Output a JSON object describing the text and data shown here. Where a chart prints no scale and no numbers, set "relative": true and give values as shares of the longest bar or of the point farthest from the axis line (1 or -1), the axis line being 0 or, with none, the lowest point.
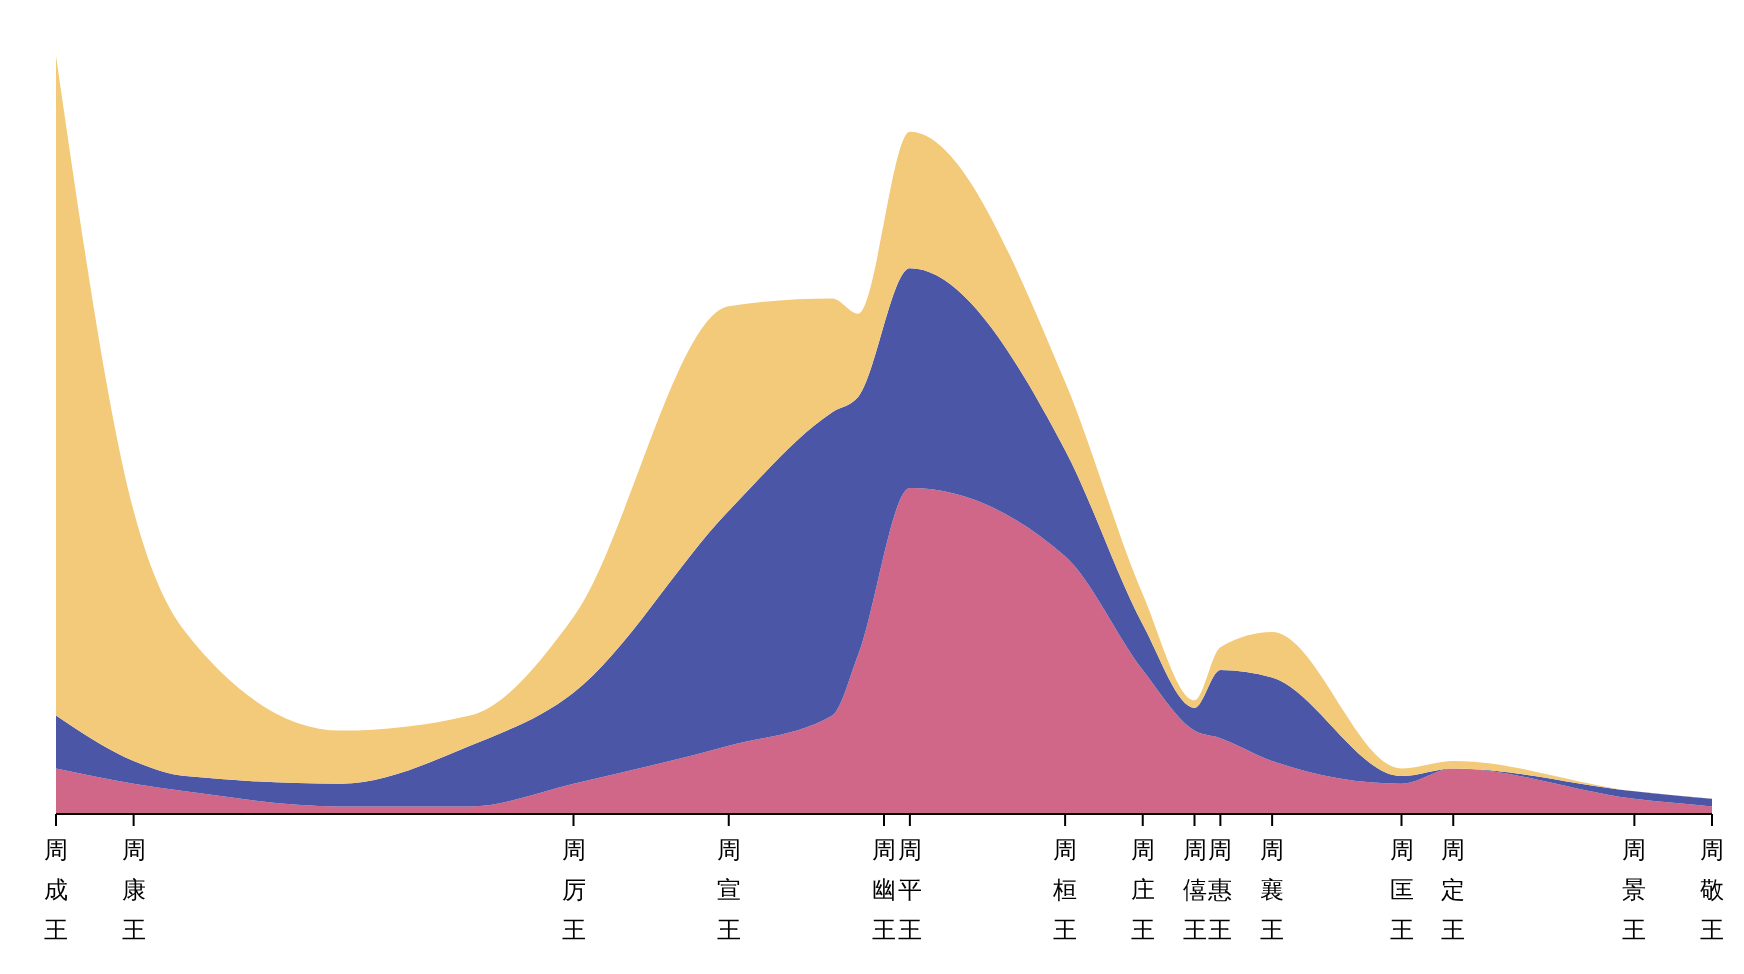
{
  "chart_data": {
    "type": "area",
    "relative": true,
    "stacked": true,
    "categories": [
      "周成王",
      null,
      null,
      "周康王",
      null,
      null,
      null,
      null,
      null,
      null,
      null,
      null,
      null,
      null,
      null,
      null,
      null,
      null,
      null,
      null,
      "周厉王",
      null,
      null,
      null,
      null,
      null,
      "周宣王",
      null,
      null,
      null,
      null,
      null,
      "周幽王",
      "周平王",
      null,
      null,
      null,
      null,
      null,
      "周桓王",
      null,
      null,
      "周庄王",
      null,
      "周僖王",
      "周惠王",
      null,
      "周襄王",
      null,
      null,
      null,
      null,
      "周匡王",
      null,
      "周定王",
      null,
      null,
      null,
      null,
      null,
      null,
      "周景王",
      null,
      null,
      "周敬王"
    ],
    "series": [
      {
        "color": "#d06688",
        "values": [
          0.06,
          null,
          null,
          0.04,
          null,
          0.03,
          null,
          null,
          null,
          null,
          null,
          0.01,
          null,
          null,
          null,
          null,
          0.01,
          null,
          null,
          null,
          0.04,
          null,
          null,
          null,
          null,
          null,
          0.09,
          null,
          null,
          null,
          0.13,
          0.21,
          null,
          0.43,
          null,
          null,
          null,
          null,
          null,
          0.34,
          null,
          null,
          0.19,
          null,
          0.11,
          0.1,
          null,
          0.07,
          null,
          null,
          null,
          null,
          0.04,
          null,
          0.06,
          null,
          null,
          null,
          null,
          null,
          null,
          0.02,
          null,
          null,
          0.01
        ]
      },
      {
        "color": "#4b57a6",
        "values": [
          0.07,
          null,
          null,
          0.03,
          null,
          0.02,
          null,
          null,
          null,
          null,
          null,
          0.03,
          null,
          null,
          null,
          null,
          0.08,
          null,
          null,
          null,
          0.12,
          null,
          null,
          null,
          null,
          null,
          0.31,
          null,
          null,
          null,
          0.4,
          0.34,
          null,
          0.29,
          null,
          null,
          null,
          null,
          null,
          0.14,
          null,
          null,
          0.06,
          null,
          0.03,
          0.09,
          null,
          0.11,
          null,
          null,
          null,
          null,
          0.01,
          null,
          0.0,
          null,
          null,
          null,
          null,
          null,
          null,
          0.01,
          null,
          null,
          0.01
        ]
      },
      {
        "color": "#f2ca7a",
        "values": [
          0.87,
          null,
          null,
          0.33,
          null,
          0.19,
          null,
          null,
          null,
          null,
          null,
          0.07,
          null,
          null,
          null,
          null,
          0.04,
          null,
          null,
          null,
          0.1,
          null,
          null,
          null,
          null,
          null,
          0.27,
          null,
          null,
          null,
          0.15,
          0.11,
          null,
          0.18,
          null,
          null,
          null,
          null,
          null,
          0.09,
          null,
          null,
          0.04,
          null,
          0.01,
          0.03,
          null,
          0.06,
          null,
          null,
          null,
          null,
          0.01,
          null,
          0.01,
          null,
          null,
          null,
          null,
          null,
          null,
          0.0,
          null,
          null,
          0.0
        ]
      }
    ],
    "legend": false
  }
}
